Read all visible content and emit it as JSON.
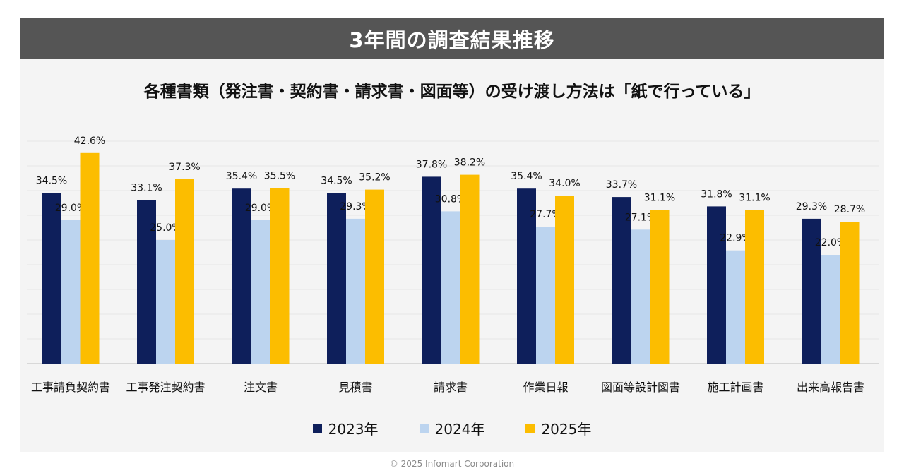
{
  "header": {
    "title": "3年間の調査結果推移"
  },
  "chart_data": {
    "type": "bar",
    "title": "各種書類（発注書・契約書・請求書・図面等）の受け渡し方法は「紙で行っている」",
    "categories": [
      "工事請負契約書",
      "工事発注契約書",
      "注文書",
      "見積書",
      "請求書",
      "作業日報",
      "図面等設計図書",
      "施工計画書",
      "出来高報告書"
    ],
    "series": [
      {
        "name": "2023年",
        "color": "#0e1f5b",
        "values": [
          34.5,
          33.1,
          35.4,
          34.5,
          37.8,
          35.4,
          33.7,
          31.8,
          29.3
        ],
        "labels": [
          "34.5%",
          "33.1%",
          "35.4%",
          "34.5%",
          "37.8%",
          "35.4%",
          "33.7%",
          "31.8%",
          "29.3%"
        ]
      },
      {
        "name": "2024年",
        "color": "#bcd4ef",
        "values": [
          29.0,
          25.0,
          29.0,
          29.3,
          30.8,
          27.7,
          27.1,
          22.9,
          22.0
        ],
        "labels": [
          "29.0%",
          "25.0%",
          "29.0%",
          "29.3%",
          "30.8%",
          "27.7%",
          "27.1%",
          "22.9%",
          "22.0%"
        ]
      },
      {
        "name": "2025年",
        "color": "#fcbd00",
        "values": [
          42.6,
          37.3,
          35.5,
          35.2,
          38.2,
          34.0,
          31.1,
          31.1,
          28.7
        ],
        "labels": [
          "42.6%",
          "37.3%",
          "35.5%",
          "35.2%",
          "38.2%",
          "34.0%",
          "31.1%",
          "31.1%",
          "28.7%"
        ]
      }
    ],
    "ylim": [
      0,
      45
    ],
    "grid": true,
    "legend": "bottom"
  },
  "footer": {
    "copyright": "© 2025 Infomart Corporation"
  }
}
